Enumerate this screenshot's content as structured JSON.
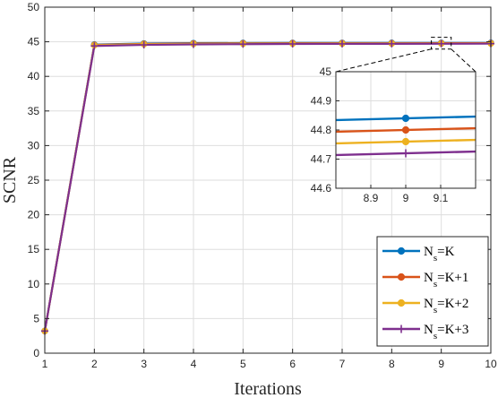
{
  "chart_data": {
    "type": "line",
    "x": [
      1,
      2,
      3,
      4,
      5,
      6,
      7,
      8,
      9,
      10
    ],
    "xlabel": "Iterations",
    "ylabel": "SCNR",
    "xlim": [
      1,
      10
    ],
    "ylim": [
      0,
      50
    ],
    "xticks": [
      "1",
      "2",
      "3",
      "4",
      "5",
      "6",
      "7",
      "8",
      "9",
      "10"
    ],
    "yticks": [
      "0",
      "5",
      "10",
      "15",
      "20",
      "25",
      "30",
      "35",
      "40",
      "45",
      "50"
    ],
    "grid": true,
    "legend_position": "bottom-right",
    "series": [
      {
        "name": "N_s=K",
        "name_main": "N",
        "name_sub": "s",
        "name_rest": "=K",
        "color": "#0072BD",
        "marker": "circle",
        "values": [
          3.2,
          44.6,
          44.75,
          44.8,
          44.82,
          44.83,
          44.83,
          44.84,
          44.84,
          44.84
        ]
      },
      {
        "name": "N_s=K+1",
        "name_main": "N",
        "name_sub": "s",
        "name_rest": "=K+1",
        "color": "#D95319",
        "marker": "circle",
        "values": [
          3.2,
          44.55,
          44.7,
          44.75,
          44.78,
          44.79,
          44.79,
          44.79,
          44.8,
          44.8
        ]
      },
      {
        "name": "N_s=K+2",
        "name_main": "N",
        "name_sub": "s",
        "name_rest": "=K+2",
        "color": "#EDB120",
        "marker": "circle",
        "values": [
          3.2,
          44.5,
          44.65,
          44.7,
          44.72,
          44.73,
          44.74,
          44.75,
          44.76,
          44.76
        ]
      },
      {
        "name": "N_s=K+3",
        "name_main": "N",
        "name_sub": "s",
        "name_rest": "=K+3",
        "color": "#7E2F8E",
        "marker": "plus",
        "values": [
          3.2,
          44.4,
          44.55,
          44.62,
          44.66,
          44.69,
          44.7,
          44.71,
          44.72,
          44.73
        ]
      }
    ],
    "inset": {
      "xlim": [
        8.8,
        9.2
      ],
      "ylim": [
        44.6,
        45
      ],
      "xticks": [
        "8.9",
        "9",
        "9.1"
      ],
      "yticks": [
        "44.6",
        "44.7",
        "44.8",
        "44.9",
        "45"
      ],
      "marker_x": 9,
      "grid": true
    }
  }
}
